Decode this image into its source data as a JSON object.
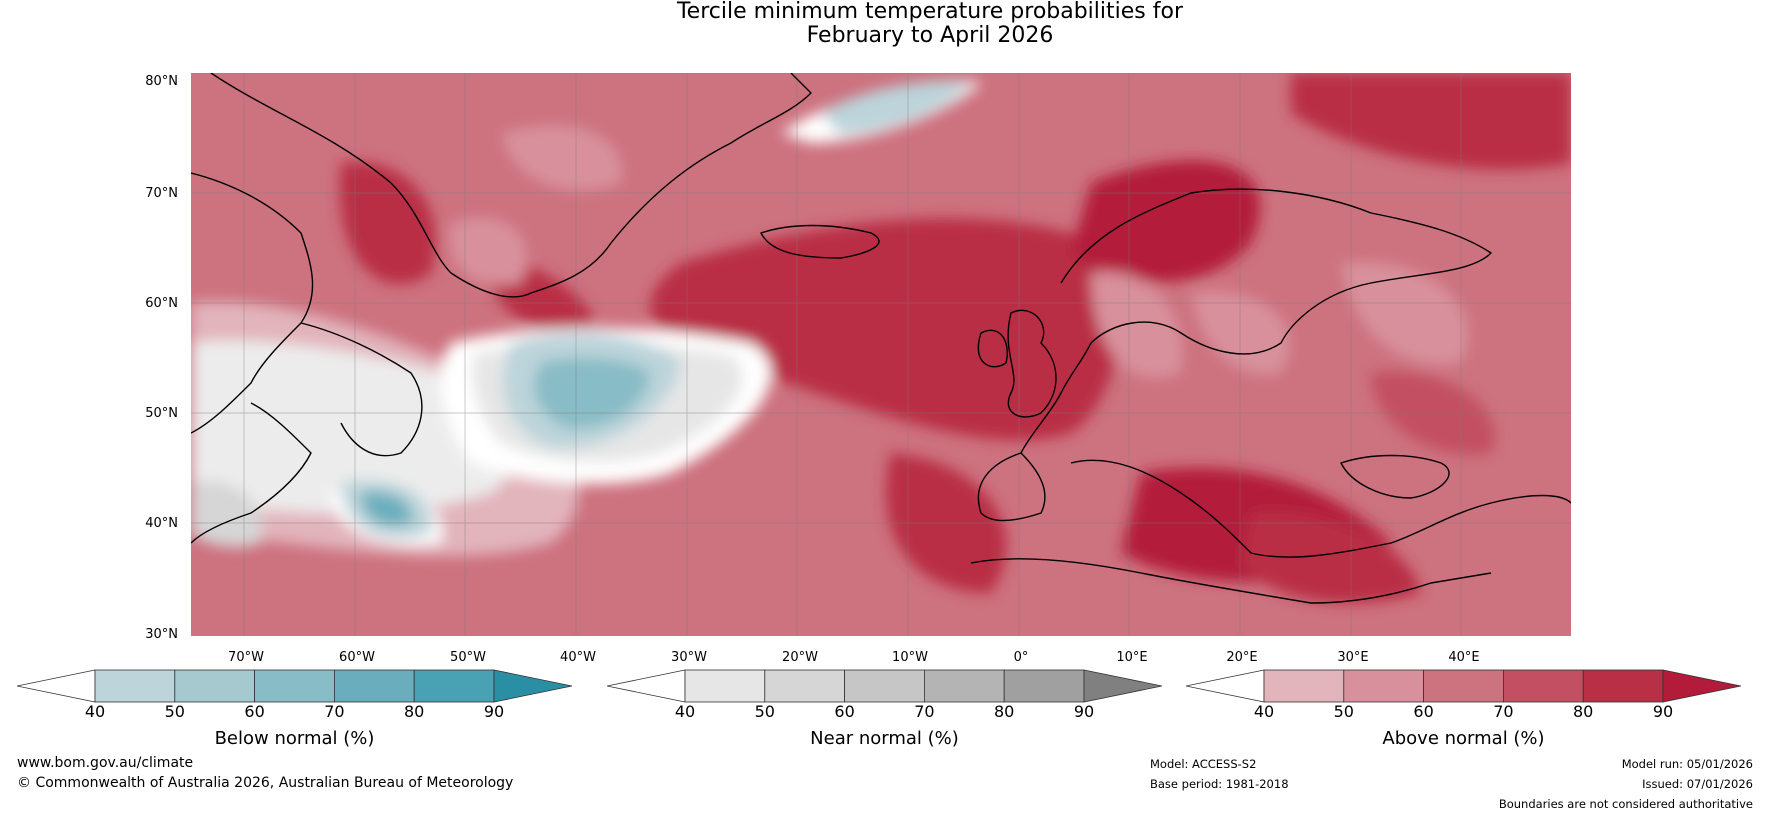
{
  "title": {
    "line1": "Tercile minimum temperature probabilities for",
    "line2": "February to April 2026"
  },
  "axes": {
    "latitudes": [
      "80°N",
      "70°N",
      "60°N",
      "50°N",
      "40°N",
      "30°N"
    ],
    "longitudes": [
      "70°W",
      "60°W",
      "50°W",
      "40°W",
      "30°W",
      "20°W",
      "10°W",
      "0°",
      "10°E",
      "20°E",
      "30°E",
      "40°E"
    ]
  },
  "colorbars": [
    {
      "label": "Below normal (%)",
      "ticks": [
        "40",
        "50",
        "60",
        "70",
        "80",
        "90"
      ],
      "colors": [
        "#ffffff",
        "#bcd4da",
        "#a6c8cf",
        "#88bcc6",
        "#6aaebd",
        "#48a2b4",
        "#2a8fa4"
      ]
    },
    {
      "label": "Near normal (%)",
      "ticks": [
        "40",
        "50",
        "60",
        "70",
        "80",
        "90"
      ],
      "colors": [
        "#ffffff",
        "#e6e6e6",
        "#d6d6d6",
        "#c6c6c6",
        "#b4b4b4",
        "#a0a0a0",
        "#808080"
      ]
    },
    {
      "label": "Above normal (%)",
      "ticks": [
        "40",
        "50",
        "60",
        "70",
        "80",
        "90"
      ],
      "colors": [
        "#ffffff",
        "#e2b4bc",
        "#d8919c",
        "#cd727f",
        "#c35062",
        "#b92f45",
        "#b31b3a"
      ]
    }
  ],
  "footer": {
    "url": "www.bom.gov.au/climate",
    "copyright": "© Commonwealth of Australia 2026, Australian Bureau of Meteorology",
    "model": "Model: ACCESS-S2",
    "base_period": "Base period: 1981-2018",
    "model_run": "Model run: 05/01/2026",
    "issued": "Issued: 07/01/2026",
    "disclaimer": "Boundaries are not considered authoritative"
  }
}
